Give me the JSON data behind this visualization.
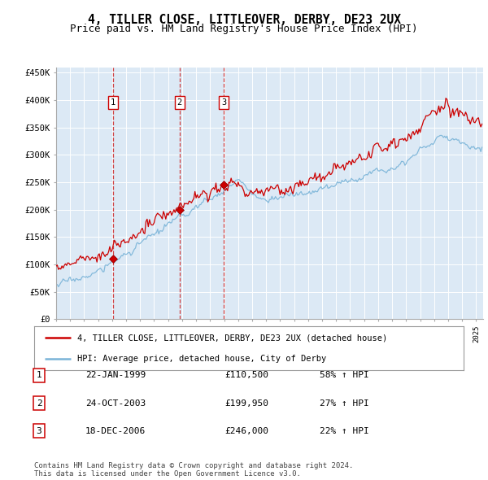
{
  "title": "4, TILLER CLOSE, LITTLEOVER, DERBY, DE23 2UX",
  "subtitle": "Price paid vs. HM Land Registry's House Price Index (HPI)",
  "ylabel_ticks": [
    "£0",
    "£50K",
    "£100K",
    "£150K",
    "£200K",
    "£250K",
    "£300K",
    "£350K",
    "£400K",
    "£450K"
  ],
  "ytick_values": [
    0,
    50000,
    100000,
    150000,
    200000,
    250000,
    300000,
    350000,
    400000,
    450000
  ],
  "ylim": [
    0,
    460000
  ],
  "xlim_start": 1995.0,
  "xlim_end": 2025.5,
  "background_color": "#dce9f5",
  "grid_color": "#ffffff",
  "sale_color": "#cc0000",
  "hpi_color": "#7ab4d8",
  "transaction_dates": [
    1999.055,
    2003.82,
    2006.97
  ],
  "transaction_prices": [
    110500,
    199950,
    246000
  ],
  "transaction_labels": [
    "1",
    "2",
    "3"
  ],
  "legend_sale_label": "4, TILLER CLOSE, LITTLEOVER, DERBY, DE23 2UX (detached house)",
  "legend_hpi_label": "HPI: Average price, detached house, City of Derby",
  "table_rows": [
    [
      "1",
      "22-JAN-1999",
      "£110,500",
      "58% ↑ HPI"
    ],
    [
      "2",
      "24-OCT-2003",
      "£199,950",
      "27% ↑ HPI"
    ],
    [
      "3",
      "18-DEC-2006",
      "£246,000",
      "22% ↑ HPI"
    ]
  ],
  "footnote": "Contains HM Land Registry data © Crown copyright and database right 2024.\nThis data is licensed under the Open Government Licence v3.0.",
  "title_fontsize": 10.5,
  "subtitle_fontsize": 9,
  "tick_fontsize": 7.5,
  "legend_fontsize": 7.5,
  "table_fontsize": 8,
  "footnote_fontsize": 6.5
}
